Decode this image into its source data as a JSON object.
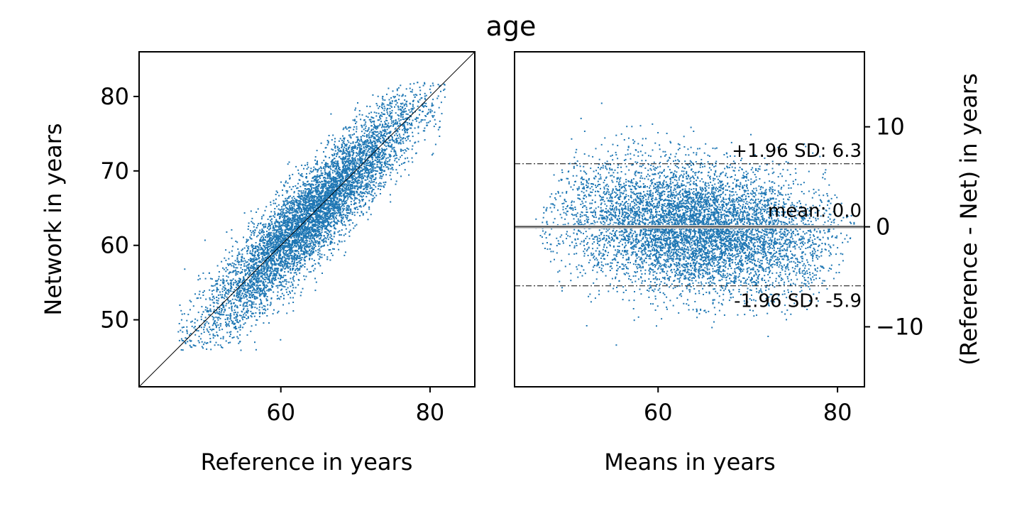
{
  "figure": {
    "title": "age"
  },
  "chart_data": [
    {
      "type": "scatter",
      "panel": "left",
      "xlabel": "Reference in years",
      "ylabel": "Network in years",
      "xlim": [
        41,
        86
      ],
      "ylim": [
        41,
        86
      ],
      "xticks": [
        60,
        80
      ],
      "yticks": [
        50,
        60,
        70,
        80
      ],
      "marker_color": "#1f77b4",
      "reference_line": "identity (y = x)",
      "point_cloud": {
        "x_range": [
          46,
          82
        ],
        "y_range": [
          46,
          82
        ],
        "relation": "approximately y = x with spread ~3 years"
      }
    },
    {
      "type": "scatter",
      "panel": "right",
      "xlabel": "Means in years",
      "ylabel": "(Reference - Net) in years",
      "xlim": [
        44,
        83
      ],
      "ylim": [
        -16,
        17.5
      ],
      "xticks": [
        60,
        80
      ],
      "yticks": [
        -10,
        0,
        10
      ],
      "yaxis_side": "right",
      "marker_color": "#1f77b4",
      "point_cloud": {
        "x_range": [
          48,
          80
        ],
        "y_range": [
          -14,
          16
        ]
      },
      "lines": [
        {
          "label": "+1.96 SD: 6.3",
          "value": 6.3,
          "style": "dash-dot"
        },
        {
          "label": "mean: 0.0",
          "value": 0.0,
          "style": "solid gray"
        },
        {
          "label": "-1.96 SD: -5.9",
          "value": -5.9,
          "style": "dash-dot"
        }
      ]
    }
  ]
}
